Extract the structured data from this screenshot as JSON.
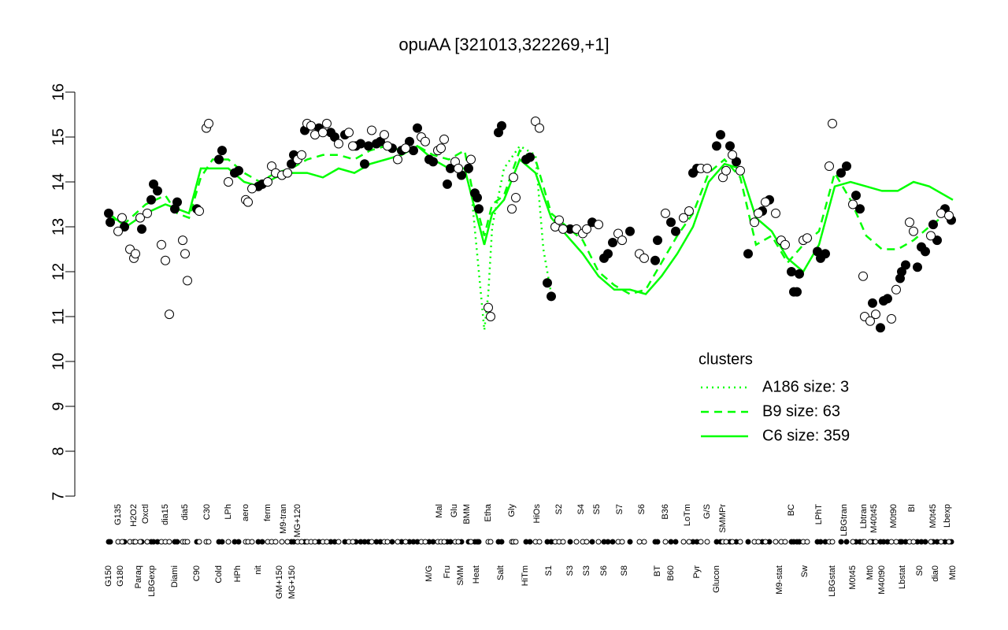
{
  "chart_data": {
    "type": "line",
    "title": "opuAA [321013,322269,+1]",
    "xlim": [
      95,
      1215
    ],
    "ylim": [
      7,
      16
    ],
    "yticks": [
      7,
      8,
      9,
      10,
      11,
      12,
      13,
      14,
      15,
      16
    ],
    "xticks": [
      {
        "value": 138,
        "label": "G150"
      },
      {
        "value": 150,
        "label": "G135"
      },
      {
        "value": 153,
        "label": "G180"
      },
      {
        "value": 170,
        "label": "H2O2"
      },
      {
        "value": 176,
        "label": "Paraq"
      },
      {
        "value": 185,
        "label": "Oxctl"
      },
      {
        "value": 193,
        "label": "LBGexp"
      },
      {
        "value": 210,
        "label": "dia15"
      },
      {
        "value": 222,
        "label": "Diami"
      },
      {
        "value": 235,
        "label": "dia5"
      },
      {
        "value": 250,
        "label": "C90"
      },
      {
        "value": 263,
        "label": "C30"
      },
      {
        "value": 278,
        "label": "Cold"
      },
      {
        "value": 290,
        "label": "LPh"
      },
      {
        "value": 302,
        "label": "HPh"
      },
      {
        "value": 312,
        "label": "aero"
      },
      {
        "value": 328,
        "label": "nit"
      },
      {
        "value": 340,
        "label": "ferm"
      },
      {
        "value": 355,
        "label": "GM+150"
      },
      {
        "value": 360,
        "label": "M9-tran"
      },
      {
        "value": 371,
        "label": "MG+150"
      },
      {
        "value": 378,
        "label": "MG+120"
      },
      {
        "value": 545,
        "label": "M/G"
      },
      {
        "value": 558,
        "label": "Mal"
      },
      {
        "value": 568,
        "label": "Fru"
      },
      {
        "value": 577,
        "label": "Glu"
      },
      {
        "value": 585,
        "label": "SMM"
      },
      {
        "value": 593,
        "label": "BMM"
      },
      {
        "value": 605,
        "label": "Heat"
      },
      {
        "value": 620,
        "label": "Etha"
      },
      {
        "value": 636,
        "label": "Salt"
      },
      {
        "value": 650,
        "label": "Gly"
      },
      {
        "value": 667,
        "label": "HiTm"
      },
      {
        "value": 682,
        "label": "HiOs"
      },
      {
        "value": 697,
        "label": "S1"
      },
      {
        "value": 710,
        "label": "S2"
      },
      {
        "value": 724,
        "label": "S3"
      },
      {
        "value": 738,
        "label": "S4"
      },
      {
        "value": 745,
        "label": "S3"
      },
      {
        "value": 758,
        "label": "S5"
      },
      {
        "value": 767,
        "label": "S6"
      },
      {
        "value": 787,
        "label": "S7"
      },
      {
        "value": 793,
        "label": "S8"
      },
      {
        "value": 815,
        "label": "S6"
      },
      {
        "value": 835,
        "label": "BT"
      },
      {
        "value": 845,
        "label": "B36"
      },
      {
        "value": 852,
        "label": "B60"
      },
      {
        "value": 873,
        "label": "LoTm"
      },
      {
        "value": 885,
        "label": "Pyr"
      },
      {
        "value": 898,
        "label": "G/S"
      },
      {
        "value": 910,
        "label": "Glucon"
      },
      {
        "value": 918,
        "label": "SMMPr"
      },
      {
        "value": 990,
        "label": "M9-stat"
      },
      {
        "value": 1005,
        "label": "BC"
      },
      {
        "value": 1022,
        "label": "Sw"
      },
      {
        "value": 1040,
        "label": "LPhT"
      },
      {
        "value": 1057,
        "label": "LBGstat"
      },
      {
        "value": 1072,
        "label": "LBGtran"
      },
      {
        "value": 1083,
        "label": "M0t45"
      },
      {
        "value": 1097,
        "label": "Lbtran"
      },
      {
        "value": 1105,
        "label": "Mt0"
      },
      {
        "value": 1110,
        "label": "M40t45"
      },
      {
        "value": 1120,
        "label": "M40t90"
      },
      {
        "value": 1135,
        "label": "M0t90"
      },
      {
        "value": 1146,
        "label": "Lbstat"
      },
      {
        "value": 1158,
        "label": "BI"
      },
      {
        "value": 1168,
        "label": "S0"
      },
      {
        "value": 1185,
        "label": "M0t45"
      },
      {
        "value": 1188,
        "label": "dia0"
      },
      {
        "value": 1203,
        "label": "Lbexp"
      },
      {
        "value": 1210,
        "label": "Mt0"
      }
    ],
    "legend_title": "clusters",
    "legend_color": "#00ff00",
    "series": [
      {
        "name": "A186 size: 3",
        "style": "dotted",
        "color": "#00ff00",
        "x": [
          600,
          615,
          620,
          625,
          640,
          660,
          680,
          690,
          700
        ],
        "values": [
          13.5,
          10.7,
          11.5,
          13.0,
          14.3,
          14.8,
          14.6,
          12.5,
          11.5
        ]
      },
      {
        "name": "B9 size: 63",
        "style": "dashed",
        "color": "#00ff00",
        "x": [
          138,
          160,
          185,
          210,
          225,
          240,
          255,
          270,
          290,
          310,
          330,
          350,
          370,
          390,
          410,
          430,
          450,
          470,
          490,
          510,
          530,
          550,
          570,
          590,
          600,
          615,
          625,
          640,
          660,
          680,
          700,
          720,
          740,
          760,
          780,
          800,
          820,
          840,
          860,
          880,
          900,
          920,
          940,
          960,
          980,
          1000,
          1020,
          1040,
          1060,
          1080,
          1100,
          1120,
          1140,
          1160,
          1180,
          1210
        ],
        "values": [
          13.2,
          13.1,
          13.5,
          13.7,
          13.3,
          13.2,
          14.1,
          14.5,
          14.5,
          14.2,
          14.0,
          14.2,
          14.3,
          14.5,
          14.6,
          14.6,
          14.5,
          14.7,
          14.8,
          14.7,
          14.8,
          14.6,
          14.5,
          14.7,
          13.8,
          12.8,
          13.5,
          13.7,
          14.7,
          14.5,
          13.3,
          13.0,
          12.7,
          12.0,
          11.7,
          11.5,
          11.6,
          12.2,
          12.8,
          13.3,
          14.2,
          14.5,
          14.1,
          12.6,
          12.8,
          12.2,
          12.6,
          12.9,
          14.2,
          13.6,
          12.8,
          12.5,
          12.5,
          12.7,
          13.0,
          13.4
        ]
      },
      {
        "name": "C6 size: 359",
        "style": "solid",
        "color": "#00ff00",
        "x": [
          138,
          160,
          185,
          210,
          225,
          240,
          255,
          270,
          290,
          310,
          330,
          350,
          370,
          390,
          410,
          430,
          450,
          470,
          490,
          510,
          530,
          550,
          570,
          590,
          600,
          615,
          625,
          640,
          660,
          680,
          700,
          720,
          740,
          760,
          780,
          800,
          820,
          840,
          860,
          880,
          900,
          920,
          940,
          960,
          980,
          1000,
          1020,
          1040,
          1060,
          1080,
          1100,
          1120,
          1140,
          1160,
          1180,
          1210
        ],
        "values": [
          13.3,
          13.0,
          13.3,
          13.5,
          13.4,
          13.3,
          14.3,
          14.3,
          14.3,
          14.0,
          13.9,
          14.1,
          14.2,
          14.2,
          14.1,
          14.3,
          14.2,
          14.4,
          14.5,
          14.6,
          14.8,
          14.5,
          14.3,
          14.3,
          13.6,
          12.6,
          13.3,
          13.6,
          14.5,
          14.2,
          13.2,
          12.8,
          12.4,
          11.9,
          11.6,
          11.6,
          11.5,
          11.9,
          12.4,
          13.0,
          14.0,
          14.4,
          14.3,
          13.2,
          12.9,
          12.3,
          12.0,
          12.6,
          13.9,
          14.0,
          13.9,
          13.8,
          13.8,
          14.0,
          13.9,
          13.6
        ]
      }
    ],
    "points": [
      {
        "color": "#000000",
        "x": [
          138,
          140,
          158,
          180,
          192,
          195,
          200,
          222,
          225,
          250,
          278,
          282,
          298,
          303,
          328,
          333,
          370,
          373,
          387,
          405,
          420,
          425,
          438,
          452,
          458,
          463,
          468,
          478,
          483,
          498,
          510,
          520,
          525,
          530,
          545,
          550,
          568,
          572,
          586,
          595,
          603,
          606,
          608,
          633,
          637,
          668,
          673,
          695,
          700,
          724,
          752,
          767,
          772,
          778,
          800,
          832,
          835,
          852,
          858,
          880,
          885,
          910,
          915,
          927,
          935,
          950,
          968,
          977,
          1005,
          1008,
          1012,
          1015,
          1038,
          1042,
          1048,
          1068,
          1075,
          1087,
          1092,
          1108,
          1118,
          1122,
          1127,
          1143,
          1145,
          1150,
          1165,
          1170,
          1175,
          1185,
          1190,
          1200,
          1208
        ],
        "values": [
          13.3,
          13.1,
          13.0,
          12.95,
          13.6,
          13.95,
          13.8,
          13.4,
          13.55,
          13.4,
          14.5,
          14.7,
          14.2,
          14.25,
          13.9,
          13.95,
          14.4,
          14.6,
          15.15,
          15.2,
          15.1,
          15.0,
          15.05,
          14.8,
          14.85,
          14.4,
          14.8,
          14.85,
          14.9,
          14.75,
          14.7,
          14.9,
          14.7,
          15.2,
          14.5,
          14.45,
          13.95,
          14.3,
          14.15,
          14.3,
          13.75,
          13.65,
          13.4,
          15.1,
          15.25,
          14.5,
          14.55,
          11.75,
          11.45,
          12.95,
          13.1,
          12.3,
          12.4,
          12.65,
          12.9,
          12.25,
          12.7,
          13.1,
          12.9,
          14.2,
          14.3,
          14.8,
          15.05,
          14.8,
          14.45,
          12.4,
          13.35,
          13.6,
          12.0,
          11.55,
          11.55,
          11.95,
          12.45,
          12.3,
          12.4,
          14.2,
          14.35,
          13.7,
          13.4,
          11.3,
          10.75,
          11.35,
          11.4,
          11.85,
          12.0,
          12.15,
          12.1,
          12.55,
          12.45,
          13.05,
          12.7,
          13.4,
          13.15
        ]
      },
      {
        "color": "#ffffff",
        "x": [
          150,
          155,
          165,
          170,
          172,
          178,
          187,
          205,
          210,
          215,
          232,
          235,
          238,
          253,
          262,
          265,
          290,
          312,
          315,
          320,
          340,
          345,
          350,
          358,
          365,
          378,
          383,
          390,
          395,
          400,
          410,
          415,
          430,
          443,
          448,
          472,
          488,
          492,
          505,
          515,
          535,
          540,
          556,
          560,
          564,
          578,
          582,
          598,
          620,
          623,
          650,
          652,
          655,
          680,
          685,
          705,
          710,
          715,
          732,
          740,
          745,
          760,
          785,
          790,
          812,
          818,
          845,
          868,
          875,
          890,
          898,
          918,
          922,
          930,
          940,
          958,
          963,
          972,
          985,
          992,
          997,
          1020,
          1025,
          1053,
          1057,
          1083,
          1096,
          1098,
          1105,
          1112,
          1132,
          1138,
          1155,
          1160,
          1182,
          1195,
          1205
        ],
        "values": [
          12.9,
          13.2,
          12.5,
          12.3,
          12.4,
          13.2,
          13.3,
          12.6,
          12.25,
          11.05,
          12.7,
          12.4,
          11.8,
          13.35,
          15.2,
          15.3,
          14.0,
          13.6,
          13.55,
          13.85,
          14.0,
          14.35,
          14.2,
          14.15,
          14.2,
          14.5,
          14.6,
          15.3,
          15.25,
          15.05,
          15.1,
          15.3,
          14.85,
          15.1,
          14.8,
          15.15,
          15.05,
          14.8,
          14.5,
          14.75,
          15.0,
          14.9,
          14.7,
          14.75,
          14.95,
          14.45,
          14.3,
          14.5,
          11.2,
          11.0,
          13.4,
          14.1,
          13.65,
          15.35,
          15.2,
          13.0,
          13.15,
          12.95,
          12.95,
          12.85,
          12.95,
          13.05,
          12.85,
          12.7,
          12.4,
          12.3,
          13.3,
          13.2,
          13.35,
          14.3,
          14.3,
          14.1,
          14.25,
          14.6,
          14.25,
          13.1,
          13.3,
          13.55,
          13.3,
          12.7,
          12.6,
          12.7,
          12.75,
          14.35,
          15.3,
          13.5,
          11.9,
          11.0,
          10.9,
          11.05,
          10.95,
          11.6,
          13.1,
          12.9,
          12.8,
          13.3,
          13.25
        ]
      }
    ]
  }
}
